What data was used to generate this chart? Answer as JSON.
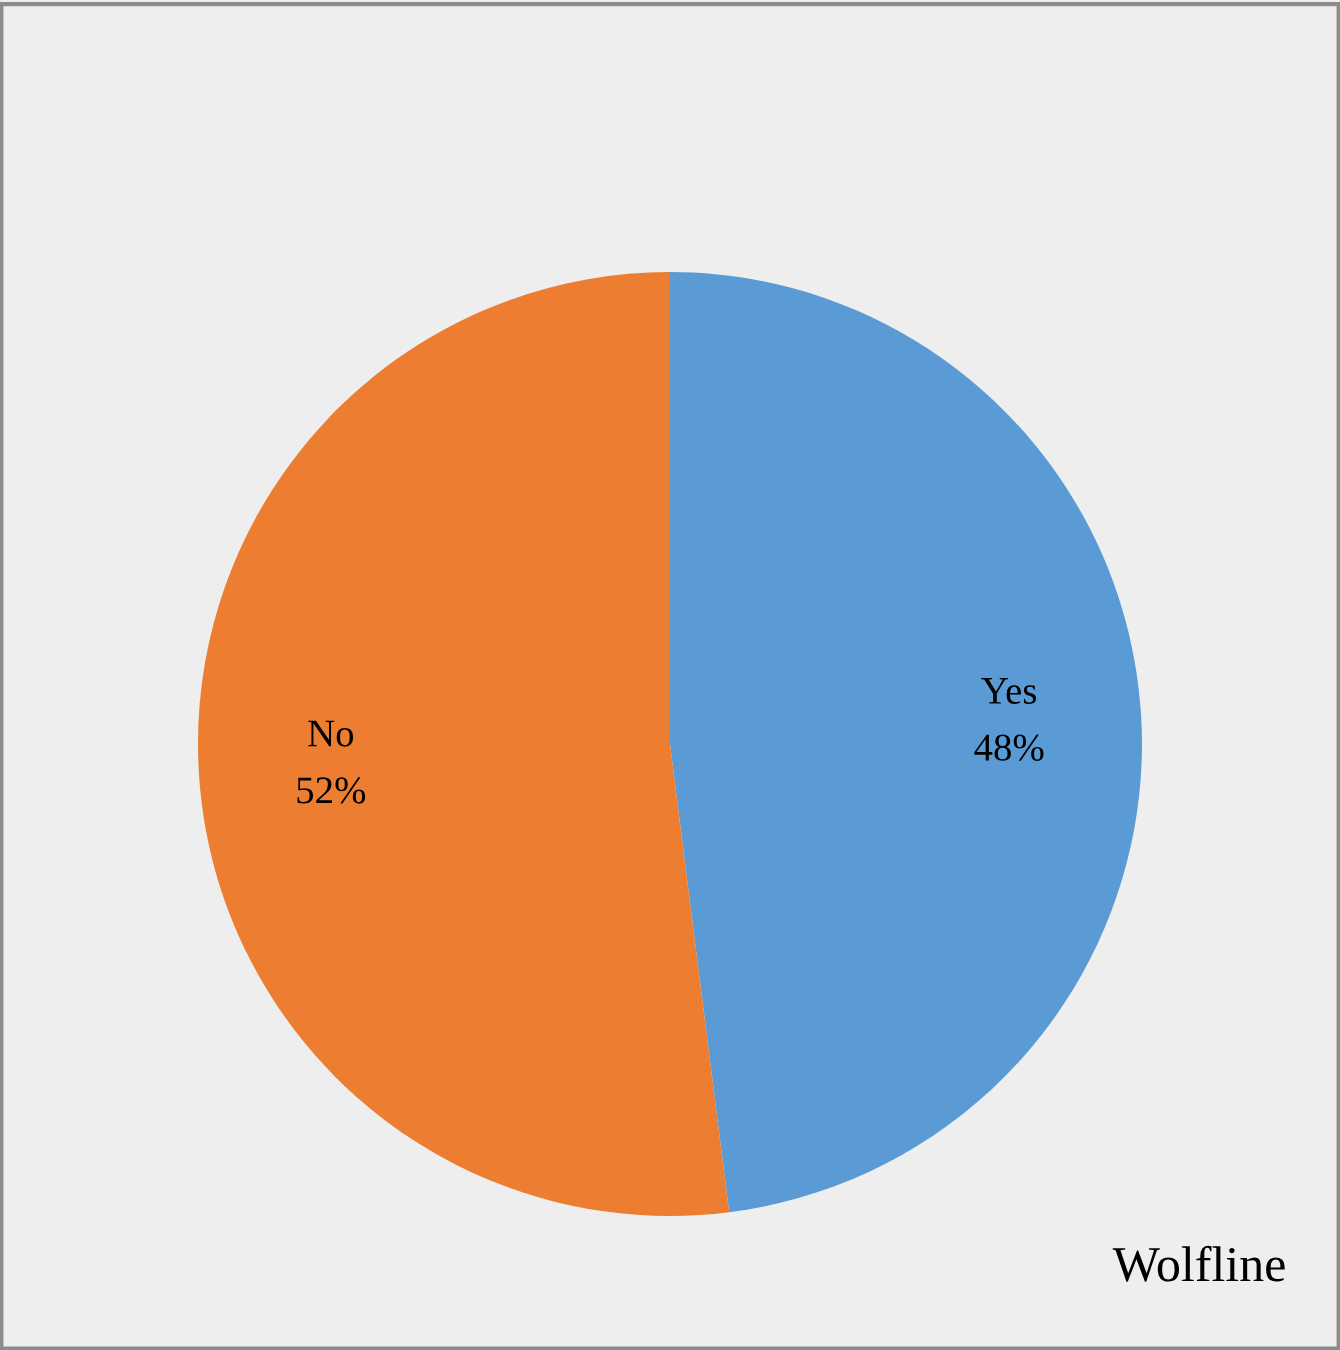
{
  "chart_data": {
    "type": "pie",
    "categories": [
      "Yes",
      "No"
    ],
    "values": [
      48,
      52
    ],
    "colors": [
      "#5b9bd5",
      "#ed7d31"
    ],
    "value_labels": [
      "48%",
      "52%"
    ],
    "annotations": [
      "Wolfline"
    ],
    "legend": false
  }
}
